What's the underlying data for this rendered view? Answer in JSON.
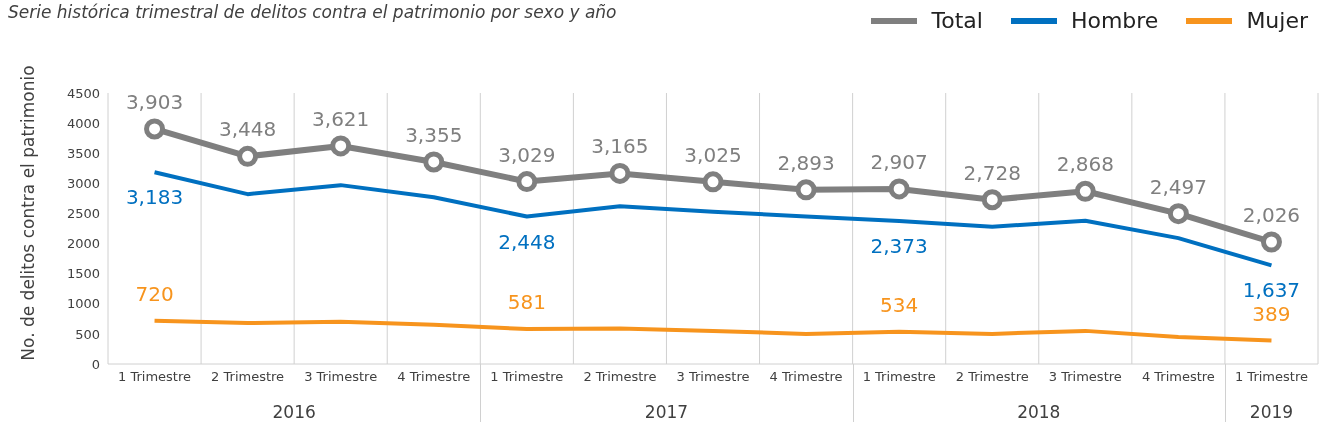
{
  "chart_data": {
    "type": "line",
    "title": "Serie histórica trimestral de delitos contra el patrimonio por sexo y año",
    "ylabel": "No. de delitos contra  el patrimonio",
    "categories": [
      "1 Trimestre",
      "2 Trimestre",
      "3 Trimestre",
      "4 Trimestre",
      "1 Trimestre",
      "2 Trimestre",
      "3 Trimestre",
      "4 Trimestre",
      "1 Trimestre",
      "2 Trimestre",
      "3 Trimestre",
      "4 Trimestre",
      "1 Trimestre"
    ],
    "series": [
      {
        "name": "Total",
        "color": "#7f7f7f",
        "marker": "circle",
        "values": [
          3903,
          3448,
          3621,
          3355,
          3029,
          3165,
          3025,
          2893,
          2907,
          2728,
          2868,
          2497,
          2026
        ],
        "value_labels": [
          "3,903",
          "3,448",
          "3,621",
          "3,355",
          "3,029",
          "3,165",
          "3,025",
          "2,893",
          "2,907",
          "2,728",
          "2,868",
          "2,497",
          "2,026"
        ]
      },
      {
        "name": "Hombre",
        "color": "#0070c0",
        "marker": "none",
        "values": [
          3183,
          2820,
          2970,
          2770,
          2448,
          2620,
          2530,
          2450,
          2373,
          2280,
          2380,
          2090,
          1637
        ],
        "value_labels": [
          "3,183",
          null,
          null,
          null,
          "2,448",
          null,
          null,
          null,
          "2,373",
          null,
          null,
          null,
          "1,637"
        ]
      },
      {
        "name": "Mujer",
        "color": "#f7941d",
        "marker": "none",
        "values": [
          720,
          680,
          700,
          650,
          581,
          590,
          550,
          500,
          534,
          500,
          550,
          450,
          389
        ],
        "value_labels": [
          "720",
          null,
          null,
          null,
          "581",
          null,
          null,
          null,
          "534",
          null,
          null,
          null,
          "389"
        ]
      }
    ],
    "annotations": [
      "2016",
      "2017",
      "2018",
      "2019"
    ],
    "ylim": [
      0,
      4500
    ],
    "yticks": [
      0,
      500,
      1000,
      1500,
      2000,
      2500,
      3000,
      3500,
      4000,
      4500
    ],
    "grid": "x",
    "legend": "top right"
  }
}
